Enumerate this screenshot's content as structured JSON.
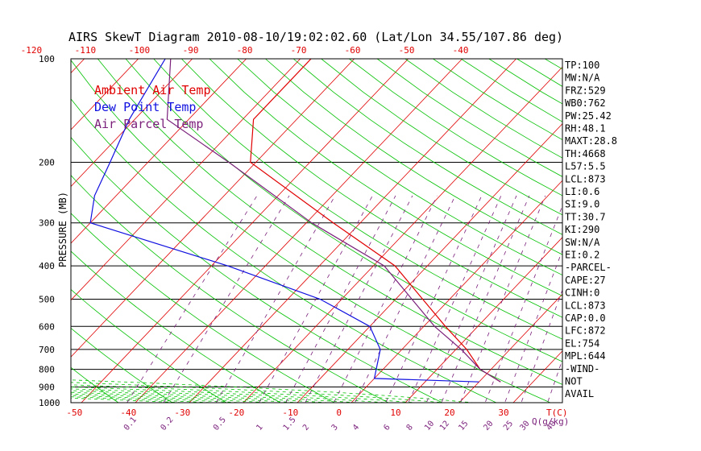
{
  "chart_data": {
    "type": "line",
    "title": "AIRS SkewT Diagram 2010-08-10/19:02:02.60 (Lat/Lon 34.55/107.86 deg)",
    "ylabel": "PRESSURE (MB)",
    "xlabel": "T(C)",
    "mixing_ratio_unit": "Q(g/kg)",
    "pressure_range": [
      1000,
      100
    ],
    "top_temp_ticks": [
      "-120",
      "-110",
      "-100",
      "-90",
      "-80",
      "-70",
      "-60",
      "-50",
      "-40"
    ],
    "bottom_temp_ticks": [
      "-50",
      "-40",
      "-30",
      "-20",
      "-10",
      "0",
      "10",
      "20",
      "30"
    ],
    "pressure_ticks": [
      "100",
      "200",
      "300",
      "400",
      "500",
      "600",
      "700",
      "800",
      "900",
      "1000"
    ],
    "mixing_ratio_labels": [
      "0.1",
      "0.2",
      "0.5",
      "1",
      "1.5",
      "2",
      "3",
      "4",
      "6",
      "8",
      "10",
      "12",
      "15",
      "20",
      "25",
      "30",
      "40"
    ],
    "legend": [
      {
        "label": "Ambient Air Temp",
        "color": "#e00000"
      },
      {
        "label": "Dew Point Temp",
        "color": "#1010e0"
      },
      {
        "label": "Air Parcel Temp",
        "color": "#7a1f7a"
      }
    ],
    "series": [
      {
        "name": "Ambient Air Temp",
        "points": [
          [
            100,
            -68
          ],
          [
            150,
            -68
          ],
          [
            200,
            -61
          ],
          [
            300,
            -35
          ],
          [
            400,
            -16
          ],
          [
            500,
            -5
          ],
          [
            600,
            4
          ],
          [
            700,
            12
          ],
          [
            800,
            18
          ],
          [
            870,
            24
          ]
        ]
      },
      {
        "name": "Dew Point Temp",
        "points": [
          [
            100,
            -95
          ],
          [
            150,
            -91
          ],
          [
            200,
            -87
          ],
          [
            250,
            -84
          ],
          [
            300,
            -80
          ],
          [
            400,
            -47
          ],
          [
            500,
            -24
          ],
          [
            600,
            -10
          ],
          [
            700,
            -4
          ],
          [
            850,
            0
          ],
          [
            870,
            20
          ]
        ]
      },
      {
        "name": "Air Parcel Temp",
        "points": [
          [
            100,
            -94
          ],
          [
            150,
            -84
          ],
          [
            200,
            -65
          ],
          [
            300,
            -39
          ],
          [
            400,
            -18
          ],
          [
            500,
            -7
          ],
          [
            600,
            2
          ],
          [
            700,
            11
          ],
          [
            800,
            18
          ],
          [
            870,
            24
          ]
        ]
      }
    ],
    "indices": [
      "TP:100",
      "MW:N/A",
      "FRZ:529",
      "WB0:762",
      "PW:25.42",
      "RH:48.1",
      "MAXT:28.8",
      "TH:4668",
      "L57:5.5",
      "LCL:873",
      "LI:0.6",
      "SI:9.0",
      "TT:30.7",
      "KI:290",
      "SW:N/A",
      "EI:0.2",
      "-PARCEL-",
      "CAPE:27",
      "CINH:0",
      "LCL:873",
      "CAP:0.0",
      "LFC:872",
      "EL:754",
      "MPL:644",
      "-WIND-",
      "NOT",
      "AVAIL"
    ],
    "colors": {
      "isotherm": "#e00000",
      "dry_adiabat": "#00c000",
      "moist_adiabat": "#00c000",
      "mixing_ratio": "#7a1f7a",
      "isobar": "#000000",
      "title": "#000000"
    }
  }
}
